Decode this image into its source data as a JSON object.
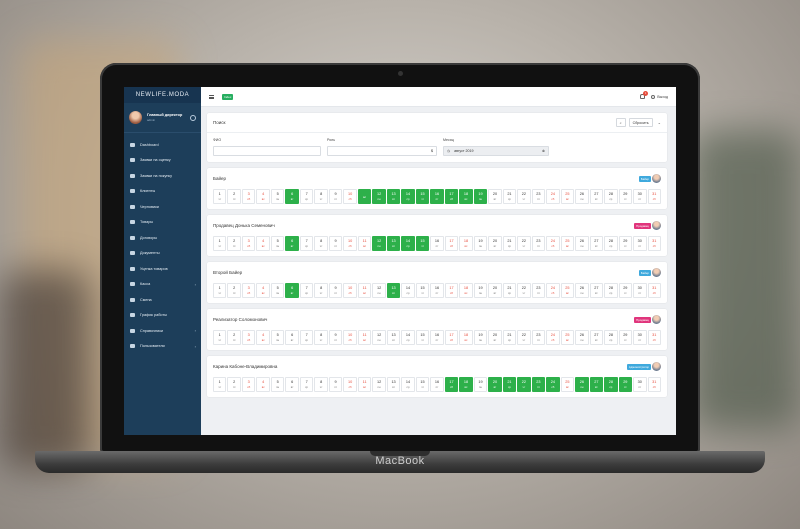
{
  "brand": "MacBook",
  "app": {
    "logo": "NEWLIFE.MODA"
  },
  "colors": {
    "sidebar": "#1d3e5a",
    "accent_green": "#2db04a",
    "weekend": "#e74c3c",
    "role_blue": "#3fa9dd",
    "role_pink": "#e0357c"
  },
  "profile": {
    "name": "Главный директор",
    "sub": "admin"
  },
  "sidebar": {
    "items": [
      {
        "label": "Dashboard",
        "icon": "dashboard-icon"
      },
      {
        "label": "Заявки на оценку",
        "icon": "list-icon"
      },
      {
        "label": "Заявки на покупку",
        "icon": "list-icon"
      },
      {
        "label": "Клиенты",
        "icon": "users-icon"
      },
      {
        "label": "Черновики",
        "icon": "draft-icon"
      },
      {
        "label": "Товары",
        "icon": "goods-icon"
      },
      {
        "label": "Договоры",
        "icon": "contract-icon"
      },
      {
        "label": "Документы",
        "icon": "document-icon"
      },
      {
        "label": "Уценка товаров",
        "icon": "discount-icon"
      },
      {
        "label": "Касса",
        "icon": "cash-icon",
        "expand": "›"
      },
      {
        "label": "Смена",
        "icon": "shift-icon"
      },
      {
        "label": "График работы",
        "icon": "calendar-icon"
      },
      {
        "label": "Справочники",
        "icon": "book-icon",
        "expand": "›"
      },
      {
        "label": "Пользователи",
        "icon": "users-icon",
        "expand": "›"
      }
    ]
  },
  "topbar": {
    "tag": "Index",
    "notifications": "1",
    "logout": "Выход"
  },
  "search": {
    "title": "Поиск",
    "reset": "Сбросить",
    "fio_label": "ФИО",
    "role_label": "Роль",
    "role_suffix": "$",
    "month_label": "Месяц",
    "month_value": "август 2019"
  },
  "weekday_labels": [
    "чт",
    "пт",
    "сб",
    "вс",
    "пн",
    "вт",
    "ср",
    "чт",
    "пт",
    "сб",
    "вс",
    "пн",
    "вт",
    "ср",
    "чт",
    "пт",
    "сб",
    "вс",
    "пн",
    "вт",
    "ср",
    "чт",
    "пт",
    "сб",
    "вс",
    "пн",
    "вт",
    "ср",
    "чт",
    "пт",
    "сб"
  ],
  "employees": [
    {
      "name": "Байер",
      "role": "Байер",
      "role_color": "#3fa9dd",
      "days_on": [
        6,
        11,
        12,
        13,
        14,
        15,
        16,
        17,
        18,
        19
      ]
    },
    {
      "name": "Продавец Донька Семенович",
      "role": "Продавец",
      "role_color": "#e0357c",
      "days_on": [
        6,
        12,
        13,
        14,
        15
      ]
    },
    {
      "name": "Второй Байер",
      "role": "Байер",
      "role_color": "#3fa9dd",
      "days_on": [
        6,
        13
      ]
    },
    {
      "name": "Реализатор Соломонович",
      "role": "Продавец",
      "role_color": "#e0357c",
      "days_on": []
    },
    {
      "name": "Карина Кабоне-Владимировна",
      "role": "Администратор",
      "role_color": "#3fa9dd",
      "days_on": [
        17,
        18,
        20,
        21,
        22,
        23,
        24,
        26,
        27,
        28,
        29
      ]
    }
  ]
}
